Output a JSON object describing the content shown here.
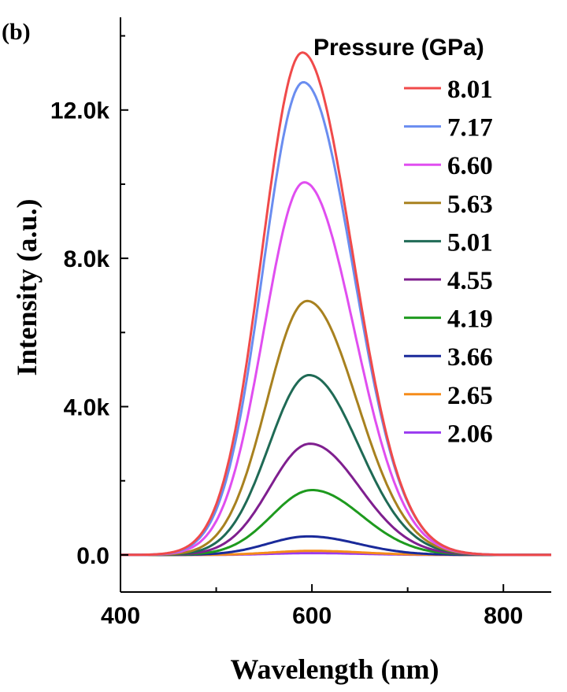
{
  "chart_data": {
    "type": "line",
    "panel_label": "(b)",
    "xlabel": "Wavelength (nm)",
    "ylabel": "Intensity (a.u.)",
    "xlim": [
      400,
      850
    ],
    "ylim": [
      -1000,
      14500
    ],
    "x_ticks": [
      400,
      600,
      800
    ],
    "x_tick_labels": [
      "400",
      "600",
      "800"
    ],
    "y_ticks": [
      0,
      4000,
      8000,
      12000
    ],
    "y_tick_labels": [
      "0.0",
      "4.0k",
      "8.0k",
      "12.0k"
    ],
    "legend_title": "Pressure (GPa)",
    "legend_position": "top-right",
    "grid": false,
    "series": [
      {
        "name": "8.01",
        "color": "#f04a4a",
        "peak_x": 590,
        "peak_y": 13550
      },
      {
        "name": "7.17",
        "color": "#6a8df0",
        "peak_x": 591,
        "peak_y": 12750
      },
      {
        "name": "6.60",
        "color": "#e04ef0",
        "peak_x": 592,
        "peak_y": 10050
      },
      {
        "name": "5.63",
        "color": "#a8811f",
        "peak_x": 595,
        "peak_y": 6850
      },
      {
        "name": "5.01",
        "color": "#1f6a55",
        "peak_x": 597,
        "peak_y": 4850
      },
      {
        "name": "4.55",
        "color": "#7f1f8f",
        "peak_x": 598,
        "peak_y": 3000
      },
      {
        "name": "4.19",
        "color": "#1e9a1e",
        "peak_x": 600,
        "peak_y": 1750
      },
      {
        "name": "3.66",
        "color": "#1a2a9a",
        "peak_x": 596,
        "peak_y": 500
      },
      {
        "name": "2.65",
        "color": "#f58c1a",
        "peak_x": 600,
        "peak_y": 110
      },
      {
        "name": "2.06",
        "color": "#9a3af0",
        "peak_x": 600,
        "peak_y": 50
      }
    ]
  }
}
